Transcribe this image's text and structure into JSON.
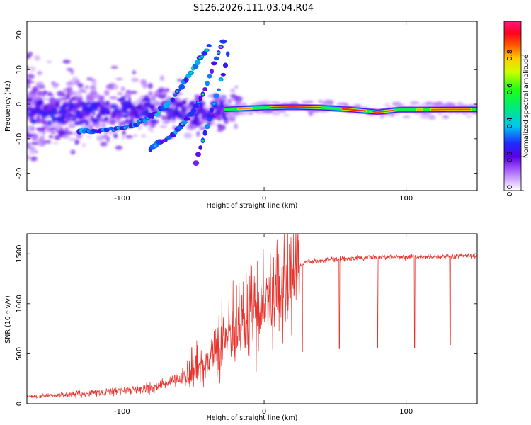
{
  "title": "S126.2026.111.03.04.R04",
  "chart_data": [
    {
      "type": "heatmap",
      "name": "spectrogram",
      "xlabel": "Height of straight line (km)",
      "ylabel": "Frequency (Hz)",
      "xlim": [
        -167,
        150
      ],
      "ylim": [
        -25,
        24
      ],
      "xticks": [
        -100,
        0,
        100
      ],
      "yticks": [
        20,
        10,
        0,
        -10,
        -20
      ],
      "tracks": [
        {
          "name": "main-band-left",
          "points": [
            [
              -130,
              -8
            ],
            [
              -115,
              -7.5
            ],
            [
              -100,
              -7
            ],
            [
              -90,
              -6
            ],
            [
              -82,
              -4
            ],
            [
              -75,
              -2.5
            ],
            [
              -68,
              0
            ],
            [
              -62,
              3
            ],
            [
              -55,
              7
            ],
            [
              -48,
              11
            ],
            [
              -42,
              15
            ],
            [
              -38,
              17
            ]
          ]
        },
        {
          "name": "branch-lower-1",
          "points": [
            [
              -80,
              -13
            ],
            [
              -72,
              -11
            ],
            [
              -65,
              -9
            ],
            [
              -58,
              -6
            ],
            [
              -52,
              -3
            ],
            [
              -47,
              0
            ],
            [
              -43,
              3
            ],
            [
              -39,
              7
            ],
            [
              -35,
              12
            ],
            [
              -31,
              16
            ],
            [
              -28,
              19
            ]
          ]
        },
        {
          "name": "branch-lower-2",
          "points": [
            [
              -48,
              -17
            ],
            [
              -45,
              -13
            ],
            [
              -42,
              -9
            ],
            [
              -39,
              -5
            ],
            [
              -36,
              -1
            ],
            [
              -33,
              3
            ],
            [
              -30,
              7
            ],
            [
              -27,
              12
            ],
            [
              -24,
              17
            ]
          ]
        },
        {
          "name": "flat-band",
          "points": [
            [
              -27,
              -1.5
            ],
            [
              -10,
              -1.2
            ],
            [
              0,
              -1
            ],
            [
              20,
              -0.8
            ],
            [
              40,
              -1
            ],
            [
              60,
              -1.5
            ],
            [
              80,
              -2.3
            ],
            [
              95,
              -1.6
            ],
            [
              110,
              -1.6
            ],
            [
              130,
              -1.5
            ],
            [
              150,
              -1.5
            ]
          ]
        }
      ]
    },
    {
      "type": "line",
      "name": "snr",
      "xlabel": "Height of straight line (km)",
      "ylabel": "SNR (10 * v/v)",
      "xlim": [
        -167,
        150
      ],
      "ylim": [
        0,
        1700
      ],
      "xticks": [
        -100,
        0,
        100
      ],
      "yticks": [
        0,
        500,
        1000,
        1500
      ],
      "series": [
        {
          "name": "SNR",
          "color": "#e8322c"
        }
      ],
      "trend_points": [
        [
          -167,
          70
        ],
        [
          -140,
          90
        ],
        [
          -120,
          110
        ],
        [
          -100,
          130
        ],
        [
          -80,
          160
        ],
        [
          -60,
          230
        ],
        [
          -50,
          320
        ],
        [
          -40,
          420
        ],
        [
          -30,
          560
        ],
        [
          -20,
          720
        ],
        [
          -10,
          850
        ],
        [
          0,
          950
        ],
        [
          10,
          1070
        ],
        [
          20,
          1200
        ],
        [
          25,
          1380
        ],
        [
          30,
          1420
        ],
        [
          50,
          1440
        ],
        [
          70,
          1460
        ],
        [
          90,
          1470
        ],
        [
          120,
          1470
        ],
        [
          150,
          1480
        ]
      ],
      "dips": [
        [
          27,
          520
        ],
        [
          53,
          550
        ],
        [
          80,
          560
        ],
        [
          106,
          560
        ],
        [
          131,
          590
        ]
      ]
    }
  ],
  "colorbar": {
    "label": "Normalized spectral amplitude",
    "ticks": [
      "0.0",
      "0.2",
      "0.4",
      "0.6",
      "0.8"
    ]
  }
}
